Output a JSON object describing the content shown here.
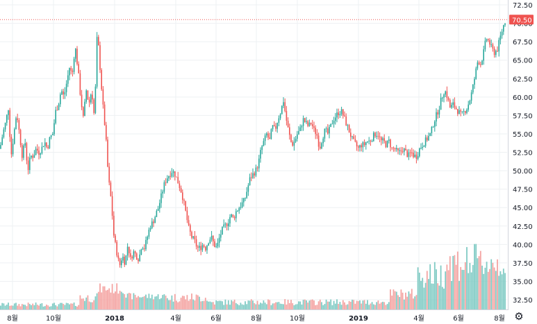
{
  "chart_data": {
    "type": "candlestick",
    "title": "",
    "xlabel": "",
    "ylabel": "",
    "ylim": [
      31.5,
      72.9
    ],
    "y_ticks": [
      "72.50",
      "70.00",
      "67.50",
      "65.00",
      "62.50",
      "60.00",
      "57.50",
      "55.00",
      "52.50",
      "50.00",
      "47.50",
      "45.00",
      "42.50",
      "40.00",
      "37.50",
      "35.00",
      "32.50"
    ],
    "x_ticks": [
      "8월",
      "10월",
      "2018",
      "4월",
      "6월",
      "8월",
      "10월",
      "2019",
      "4월",
      "6월",
      "8월"
    ],
    "last_price": "70.50",
    "last_price_value": 70.5,
    "grid": true,
    "colors": {
      "up": "#26a69a",
      "down": "#ef5350",
      "up_volume": "#80cbc4",
      "down_volume": "#f4a4a2",
      "grid": "#eef0f3",
      "last_price": "#ef5350"
    },
    "price_path": [
      [
        0,
        53
      ],
      [
        4,
        55
      ],
      [
        8,
        56.5
      ],
      [
        12,
        58.5
      ],
      [
        16,
        52
      ],
      [
        20,
        55
      ],
      [
        24,
        58
      ],
      [
        28,
        55
      ],
      [
        32,
        52
      ],
      [
        36,
        54
      ],
      [
        40,
        50
      ],
      [
        44,
        52
      ],
      [
        48,
        52
      ],
      [
        52,
        53
      ],
      [
        56,
        52.5
      ],
      [
        60,
        53
      ],
      [
        64,
        54
      ],
      [
        68,
        53
      ],
      [
        72,
        54.5
      ],
      [
        76,
        55
      ],
      [
        80,
        58
      ],
      [
        84,
        59
      ],
      [
        88,
        61
      ],
      [
        92,
        60
      ],
      [
        96,
        62
      ],
      [
        100,
        64
      ],
      [
        104,
        63
      ],
      [
        108,
        67
      ],
      [
        112,
        64
      ],
      [
        116,
        60
      ],
      [
        120,
        57
      ],
      [
        124,
        61
      ],
      [
        128,
        59
      ],
      [
        132,
        61
      ],
      [
        136,
        57
      ],
      [
        140,
        69
      ],
      [
        144,
        64
      ],
      [
        148,
        59
      ],
      [
        152,
        55
      ],
      [
        156,
        49
      ],
      [
        160,
        46
      ],
      [
        164,
        41
      ],
      [
        168,
        39
      ],
      [
        172,
        37
      ],
      [
        176,
        38.5
      ],
      [
        180,
        37.5
      ],
      [
        184,
        40
      ],
      [
        188,
        38
      ],
      [
        192,
        39
      ],
      [
        196,
        38.5
      ],
      [
        200,
        38
      ],
      [
        204,
        40
      ],
      [
        208,
        39.5
      ],
      [
        212,
        41
      ],
      [
        216,
        42.5
      ],
      [
        220,
        43
      ],
      [
        224,
        44
      ],
      [
        228,
        45
      ],
      [
        232,
        46.5
      ],
      [
        236,
        48
      ],
      [
        240,
        49
      ],
      [
        244,
        49.5
      ],
      [
        248,
        50
      ],
      [
        252,
        49.5
      ],
      [
        256,
        48.5
      ],
      [
        260,
        47.5
      ],
      [
        264,
        46
      ],
      [
        268,
        44
      ],
      [
        272,
        42
      ],
      [
        276,
        41
      ],
      [
        280,
        40.5
      ],
      [
        284,
        39.5
      ],
      [
        288,
        39.5
      ],
      [
        292,
        40
      ],
      [
        296,
        39.5
      ],
      [
        300,
        40.5
      ],
      [
        304,
        41
      ],
      [
        308,
        40
      ],
      [
        312,
        39.5
      ],
      [
        316,
        41
      ],
      [
        320,
        42
      ],
      [
        324,
        42.5
      ],
      [
        328,
        43
      ],
      [
        332,
        44
      ],
      [
        336,
        43.5
      ],
      [
        340,
        44.5
      ],
      [
        344,
        45
      ],
      [
        348,
        45.5
      ],
      [
        352,
        46
      ],
      [
        356,
        47.5
      ],
      [
        360,
        49
      ],
      [
        364,
        49.5
      ],
      [
        368,
        50
      ],
      [
        372,
        51
      ],
      [
        376,
        53
      ],
      [
        380,
        54
      ],
      [
        384,
        55
      ],
      [
        388,
        54
      ],
      [
        392,
        56
      ],
      [
        396,
        55.5
      ],
      [
        400,
        57
      ],
      [
        404,
        58
      ],
      [
        408,
        59.5
      ],
      [
        412,
        57
      ],
      [
        416,
        55
      ],
      [
        420,
        53.5
      ],
      [
        424,
        54
      ],
      [
        428,
        55
      ],
      [
        432,
        55.5
      ],
      [
        436,
        57
      ],
      [
        440,
        56.5
      ],
      [
        444,
        56
      ],
      [
        448,
        56.5
      ],
      [
        452,
        55.5
      ],
      [
        456,
        55
      ],
      [
        460,
        53
      ],
      [
        464,
        54.5
      ],
      [
        468,
        55.5
      ],
      [
        472,
        55
      ],
      [
        476,
        56
      ],
      [
        480,
        57
      ],
      [
        484,
        57.5
      ],
      [
        488,
        58
      ],
      [
        492,
        58
      ],
      [
        496,
        57
      ],
      [
        500,
        56
      ],
      [
        504,
        55
      ],
      [
        508,
        54
      ],
      [
        512,
        53.5
      ],
      [
        516,
        53
      ],
      [
        520,
        53.5
      ],
      [
        524,
        53.5
      ],
      [
        528,
        54
      ],
      [
        532,
        54
      ],
      [
        536,
        54.5
      ],
      [
        540,
        55
      ],
      [
        544,
        55
      ],
      [
        548,
        54
      ],
      [
        552,
        54
      ],
      [
        556,
        53.5
      ],
      [
        560,
        54
      ],
      [
        564,
        53
      ],
      [
        568,
        53
      ],
      [
        572,
        52.5
      ],
      [
        576,
        52.5
      ],
      [
        580,
        53
      ],
      [
        584,
        52.5
      ],
      [
        588,
        52
      ],
      [
        592,
        52.5
      ],
      [
        596,
        52
      ],
      [
        600,
        52
      ],
      [
        604,
        53
      ],
      [
        608,
        53.5
      ],
      [
        612,
        54
      ],
      [
        616,
        54.5
      ],
      [
        620,
        55
      ],
      [
        624,
        56.5
      ],
      [
        628,
        57.5
      ],
      [
        632,
        58.5
      ],
      [
        636,
        60
      ],
      [
        640,
        61
      ],
      [
        644,
        60
      ],
      [
        648,
        58.5
      ],
      [
        652,
        59
      ],
      [
        656,
        58.5
      ],
      [
        660,
        58
      ],
      [
        664,
        57.5
      ],
      [
        668,
        58
      ],
      [
        672,
        58.5
      ],
      [
        676,
        59.5
      ],
      [
        680,
        61
      ],
      [
        684,
        63
      ],
      [
        688,
        65
      ],
      [
        692,
        64.5
      ],
      [
        696,
        66
      ],
      [
        700,
        68
      ],
      [
        704,
        67.5
      ],
      [
        708,
        66.5
      ],
      [
        712,
        66
      ],
      [
        716,
        66.5
      ],
      [
        720,
        68
      ],
      [
        724,
        69.5
      ],
      [
        728,
        70.5
      ]
    ]
  },
  "ui": {
    "settings_icon": "gear-icon"
  }
}
